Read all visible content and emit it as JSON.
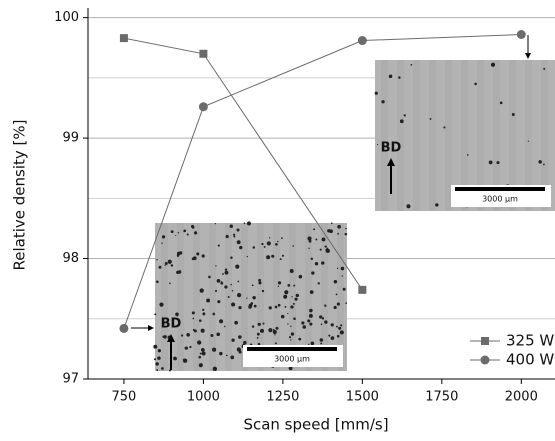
{
  "chart_data": {
    "type": "line",
    "x_label": "Scan speed [mm/s]",
    "y_label": "Relative density [%]",
    "x": [
      750,
      1000,
      1500,
      2000
    ],
    "series": [
      {
        "name": "325 W",
        "color": "#6b6b6b",
        "marker": "square",
        "values": [
          99.83,
          99.7,
          97.74,
          null
        ]
      },
      {
        "name": "400 W",
        "color": "#6b6b6b",
        "marker": "circle",
        "values": [
          97.42,
          99.26,
          99.81,
          99.86
        ]
      }
    ],
    "xlim": [
      637,
      2106
    ],
    "xticks": [
      750,
      1000,
      1250,
      1500,
      1750,
      2000
    ],
    "ylim": [
      97,
      100.08
    ],
    "yticks": [
      97,
      98,
      99,
      100
    ],
    "y_minor_grid": [
      97.5,
      98.5,
      99.5
    ],
    "grid": true,
    "legend_position": "lower right",
    "insets": [
      {
        "label": "BD",
        "scale": "3000 µm"
      },
      {
        "label": "BD",
        "scale": "3000 µm"
      }
    ]
  }
}
